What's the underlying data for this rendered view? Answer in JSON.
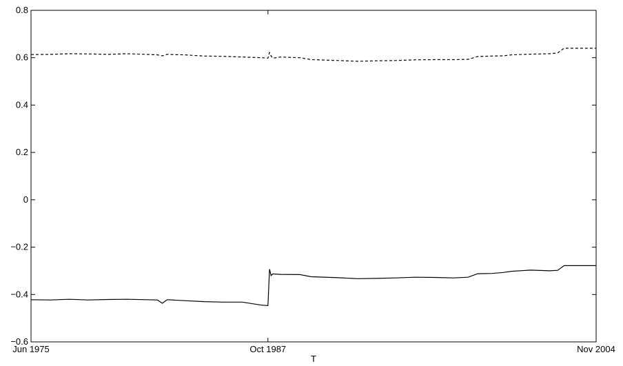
{
  "chart_data": {
    "type": "line",
    "title": "",
    "xlabel": "T",
    "ylabel": "",
    "x_ticks": [
      "Jun 1975",
      "Oct 1987",
      "Nov 2004"
    ],
    "xlim": [
      "1975-06",
      "2004-11"
    ],
    "ylim": [
      -0.6,
      0.8
    ],
    "y_ticks": [
      -0.6,
      -0.4,
      -0.2,
      0,
      0.2,
      0.4,
      0.6,
      0.8
    ],
    "y_tick_labels": [
      "−0.6",
      "−0.4",
      "−0.2",
      "0",
      "0.2",
      "0.4",
      "0.6",
      "0.8"
    ],
    "grid": false,
    "legend": "none",
    "series": [
      {
        "style": "dashed",
        "color": "#000000",
        "points": [
          [
            "1975-06",
            0.613
          ],
          [
            "1976-06",
            0.614
          ],
          [
            "1977-06",
            0.617
          ],
          [
            "1978-06",
            0.616
          ],
          [
            "1979-06",
            0.614
          ],
          [
            "1980-06",
            0.617
          ],
          [
            "1981-06",
            0.614
          ],
          [
            "1982-01",
            0.612
          ],
          [
            "1982-04",
            0.608
          ],
          [
            "1982-07",
            0.614
          ],
          [
            "1983-06",
            0.612
          ],
          [
            "1984-06",
            0.607
          ],
          [
            "1985-06",
            0.606
          ],
          [
            "1986-06",
            0.603
          ],
          [
            "1987-06",
            0.6
          ],
          [
            "1987-10",
            0.598
          ],
          [
            "1987-11",
            0.622
          ],
          [
            "1987-12",
            0.607
          ],
          [
            "1988-01",
            0.598
          ],
          [
            "1988-06",
            0.603
          ],
          [
            "1989-06",
            0.6
          ],
          [
            "1990-01",
            0.592
          ],
          [
            "1991-06",
            0.588
          ],
          [
            "1992-06",
            0.585
          ],
          [
            "1993-06",
            0.587
          ],
          [
            "1994-06",
            0.588
          ],
          [
            "1995-06",
            0.591
          ],
          [
            "1996-06",
            0.592
          ],
          [
            "1997-06",
            0.592
          ],
          [
            "1998-03",
            0.593
          ],
          [
            "1998-09",
            0.605
          ],
          [
            "1999-06",
            0.607
          ],
          [
            "2000-01",
            0.608
          ],
          [
            "2000-06",
            0.612
          ],
          [
            "2001-06",
            0.615
          ],
          [
            "2002-06",
            0.617
          ],
          [
            "2002-11",
            0.62
          ],
          [
            "2003-03",
            0.64
          ],
          [
            "2004-11",
            0.64
          ]
        ]
      },
      {
        "style": "solid",
        "color": "#000000",
        "points": [
          [
            "1975-06",
            -0.422
          ],
          [
            "1976-06",
            -0.423
          ],
          [
            "1977-06",
            -0.42
          ],
          [
            "1978-06",
            -0.423
          ],
          [
            "1979-06",
            -0.421
          ],
          [
            "1980-06",
            -0.42
          ],
          [
            "1981-06",
            -0.422
          ],
          [
            "1982-01",
            -0.423
          ],
          [
            "1982-04",
            -0.437
          ],
          [
            "1982-07",
            -0.422
          ],
          [
            "1983-06",
            -0.426
          ],
          [
            "1984-06",
            -0.43
          ],
          [
            "1985-06",
            -0.432
          ],
          [
            "1986-06",
            -0.432
          ],
          [
            "1987-06",
            -0.445
          ],
          [
            "1987-10",
            -0.447
          ],
          [
            "1987-11",
            -0.293
          ],
          [
            "1987-12",
            -0.32
          ],
          [
            "1988-01",
            -0.313
          ],
          [
            "1988-06",
            -0.315
          ],
          [
            "1989-06",
            -0.316
          ],
          [
            "1990-01",
            -0.325
          ],
          [
            "1991-06",
            -0.329
          ],
          [
            "1992-06",
            -0.333
          ],
          [
            "1993-06",
            -0.332
          ],
          [
            "1994-06",
            -0.33
          ],
          [
            "1995-06",
            -0.327
          ],
          [
            "1996-06",
            -0.328
          ],
          [
            "1997-06",
            -0.33
          ],
          [
            "1998-03",
            -0.327
          ],
          [
            "1998-09",
            -0.312
          ],
          [
            "1999-06",
            -0.311
          ],
          [
            "2000-01",
            -0.307
          ],
          [
            "2000-06",
            -0.302
          ],
          [
            "2001-06",
            -0.297
          ],
          [
            "2002-06",
            -0.3
          ],
          [
            "2002-11",
            -0.298
          ],
          [
            "2003-03",
            -0.278
          ],
          [
            "2004-11",
            -0.278
          ]
        ]
      }
    ]
  }
}
